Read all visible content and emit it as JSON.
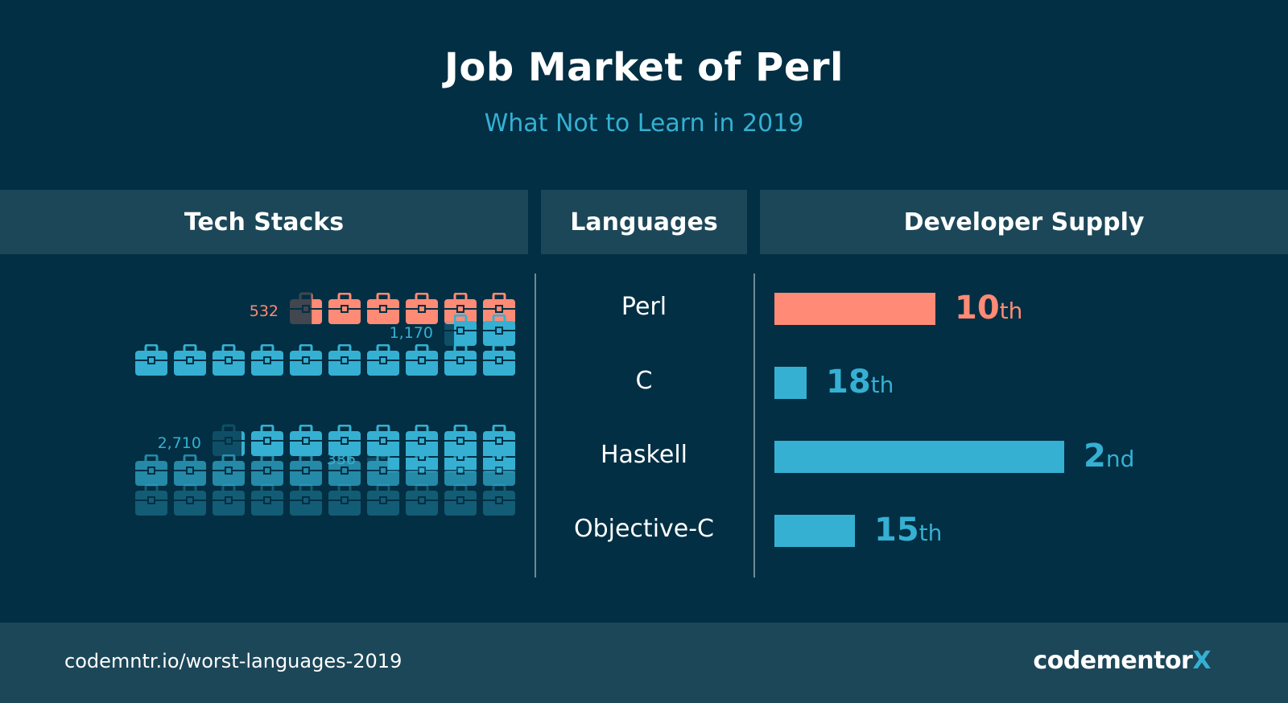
{
  "title": "Job Market of Perl",
  "subtitle": "What Not to Learn in 2019",
  "headers": {
    "tech": "Tech Stacks",
    "languages": "Languages",
    "developer": "Developer Supply"
  },
  "colors": {
    "background": "#022f43",
    "panel": "#1c4758",
    "highlight": "#ff8a75",
    "accent": "#35b0d3",
    "divider": "#6d8a96"
  },
  "chart_data": {
    "type": "table",
    "icon": "briefcase-icon",
    "rows": [
      {
        "language": "Perl",
        "tech_stacks": 532,
        "tech_stacks_label": "532",
        "rank": 10,
        "rank_suffix": "th",
        "highlight": true
      },
      {
        "language": "C",
        "tech_stacks": 1170,
        "tech_stacks_label": "1,170",
        "rank": 18,
        "rank_suffix": "th",
        "highlight": false
      },
      {
        "language": "Haskell",
        "tech_stacks": 336,
        "tech_stacks_label": "336",
        "rank": 2,
        "rank_suffix": "nd",
        "highlight": false
      },
      {
        "language": "Objective-C",
        "tech_stacks": 2710,
        "tech_stacks_label": "2,710",
        "rank": 15,
        "rank_suffix": "th",
        "highlight": false
      }
    ]
  },
  "footer": {
    "url": "codemntr.io/worst-languages-2019",
    "logo_main": "codementor",
    "logo_x": "X"
  }
}
